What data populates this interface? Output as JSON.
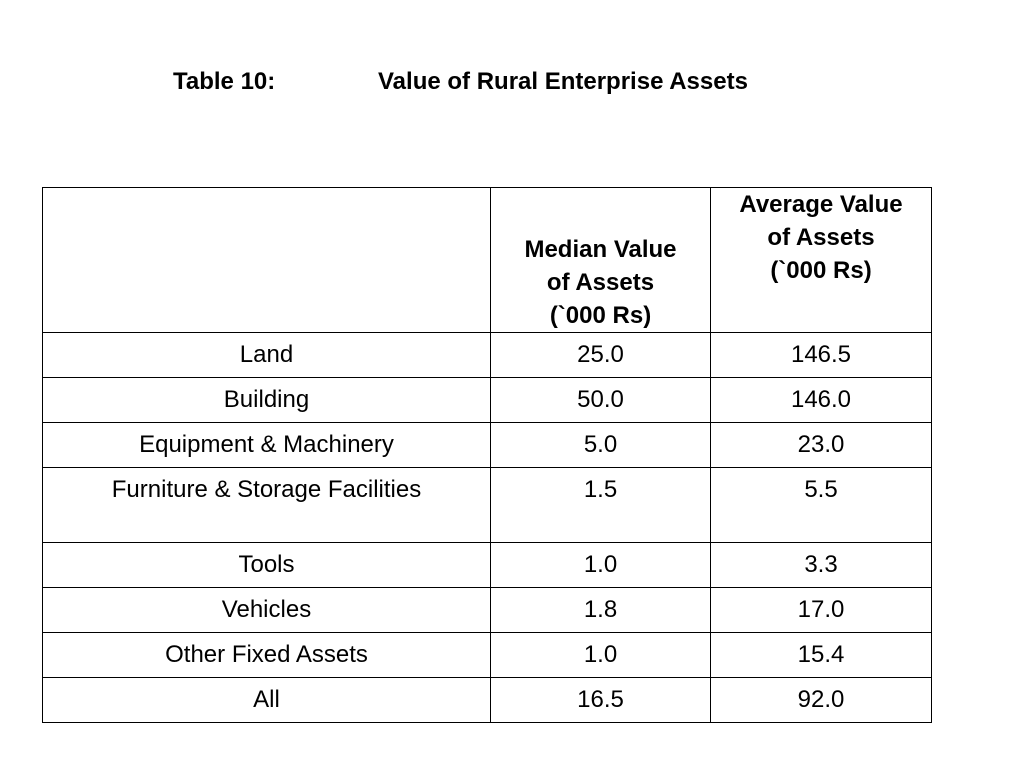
{
  "title": {
    "label": "Table 10:",
    "text": "Value of Rural Enterprise Assets"
  },
  "table": {
    "headers": {
      "category": "",
      "median": [
        "Median  Value",
        "of Assets",
        "(`000 Rs)"
      ],
      "average": [
        "Average Value",
        "of Assets",
        "(`000 Rs)"
      ]
    },
    "rows": [
      {
        "category": "Land",
        "median": "25.0",
        "average": "146.5"
      },
      {
        "category": "Building",
        "median": "50.0",
        "average": "146.0"
      },
      {
        "category": "Equipment & Machinery",
        "median": "5.0",
        "average": "23.0"
      },
      {
        "category": "Furniture & Storage Facilities",
        "median": "1.5",
        "average": "5.5"
      },
      {
        "category": "Tools",
        "median": "1.0",
        "average": "3.3"
      },
      {
        "category": "Vehicles",
        "median": "1.8",
        "average": "17.0"
      },
      {
        "category": "Other Fixed Assets",
        "median": "1.0",
        "average": "15.4"
      },
      {
        "category": "All",
        "median": "16.5",
        "average": "92.0"
      }
    ]
  }
}
